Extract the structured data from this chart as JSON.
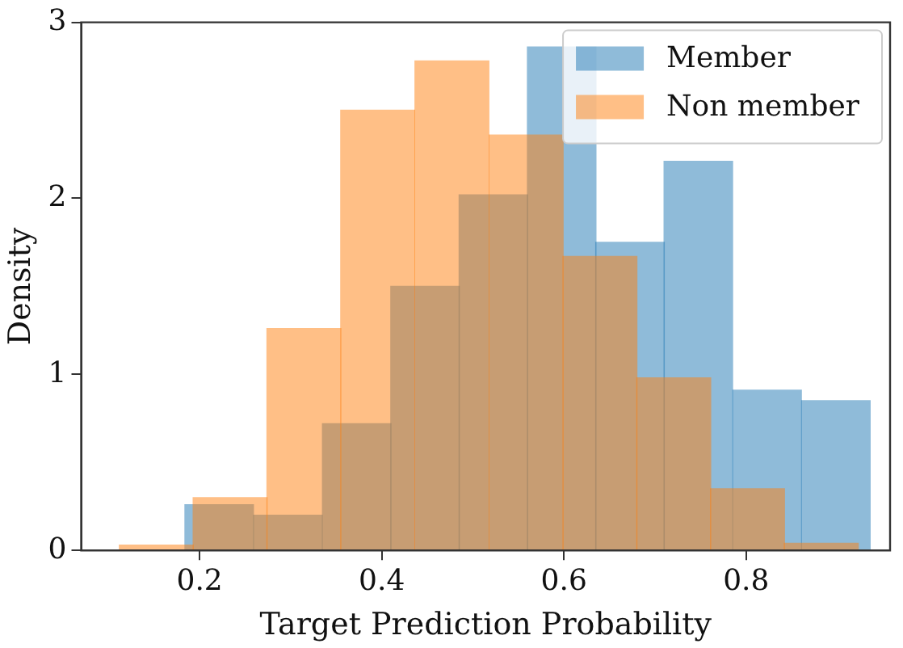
{
  "chart_data": {
    "type": "histogram",
    "xlabel": "Target Prediction Probability",
    "ylabel": "Density",
    "bins": [
      0.184,
      0.259,
      0.335,
      0.41,
      0.485,
      0.56,
      0.635,
      0.71,
      0.785,
      0.861,
      0.936
    ],
    "series": [
      {
        "name": "Member",
        "color": "#1f77b4",
        "values": [
          0.26,
          0.2,
          0.72,
          1.5,
          2.02,
          2.86,
          1.75,
          2.21,
          0.91,
          0.85
        ]
      },
      {
        "name": "Non member",
        "color": "#ff7f0e",
        "bins": [
          0.112,
          0.193,
          0.274,
          0.355,
          0.436,
          0.518,
          0.599,
          0.68,
          0.761,
          0.842,
          0.923
        ],
        "values": [
          0.03,
          0.3,
          1.26,
          2.5,
          2.78,
          2.36,
          1.67,
          0.98,
          0.35,
          0.04
        ]
      }
    ],
    "xlim": [
      0.07,
      0.958
    ],
    "xticks": [
      0.2,
      0.4,
      0.6,
      0.8
    ],
    "ylim": [
      0,
      3
    ],
    "yticks": [
      0,
      1,
      2,
      3
    ],
    "legend": "top right"
  }
}
